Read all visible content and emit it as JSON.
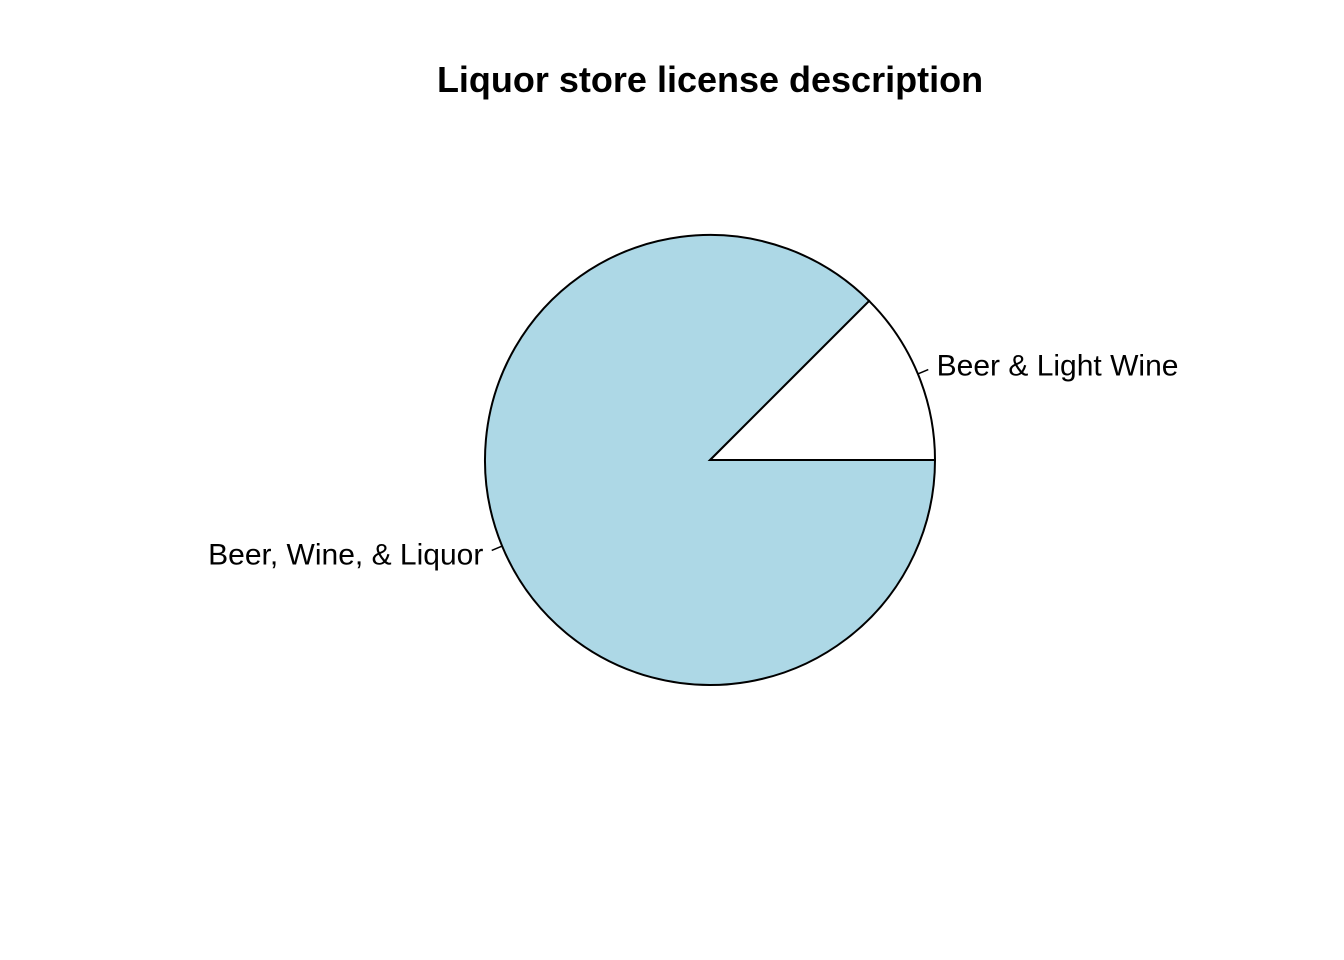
{
  "chart_data": {
    "type": "pie",
    "title": "Liquor store license description",
    "categories": [
      "Beer & Light Wine",
      "Beer, Wine, & Liquor"
    ],
    "values": [
      12.5,
      87.5
    ],
    "colors": [
      "#ffffff",
      "#add8e6"
    ],
    "direction": "counterclockwise",
    "start": "3 o'clock"
  }
}
